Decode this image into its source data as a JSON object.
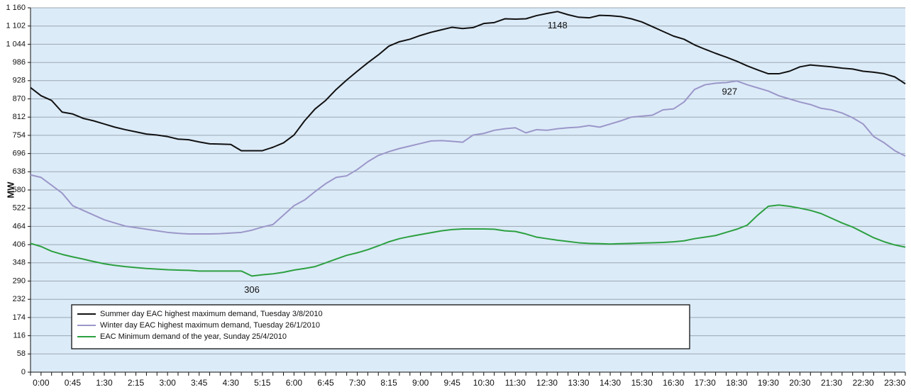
{
  "chart_data": {
    "type": "line",
    "y_label": "MW",
    "categories": [
      null,
      "0:00",
      null,
      null,
      "0:45",
      null,
      null,
      "1:30",
      null,
      null,
      "2:15",
      null,
      null,
      "3:00",
      null,
      null,
      "3:45",
      null,
      null,
      "4:30",
      null,
      null,
      "5:15",
      null,
      null,
      "6:00",
      null,
      null,
      "6:45",
      null,
      null,
      "7:30",
      null,
      null,
      "8:15",
      null,
      null,
      "9:00",
      null,
      null,
      "9:45",
      null,
      null,
      "10:30",
      null,
      null,
      "11:30",
      null,
      null,
      "12:30",
      null,
      null,
      "13:30",
      null,
      null,
      "14:30",
      null,
      null,
      "15:30",
      null,
      null,
      "16:30",
      null,
      null,
      "17:30",
      null,
      null,
      "18:30",
      null,
      null,
      "19:30",
      null,
      null,
      "20:30",
      null,
      null,
      "21:30",
      null,
      null,
      "22:30",
      null,
      null,
      "23:30",
      null
    ],
    "series": [
      {
        "name": "Summer day EAC highest maximum demand, Tuesday 3/8/2010",
        "color": "#111111",
        "values": [
          906,
          880,
          865,
          828,
          822,
          808,
          800,
          790,
          780,
          772,
          765,
          758,
          755,
          750,
          742,
          740,
          733,
          727,
          726,
          725,
          705,
          705,
          705,
          716,
          730,
          755,
          800,
          838,
          865,
          900,
          930,
          958,
          985,
          1010,
          1038,
          1052,
          1060,
          1072,
          1082,
          1090,
          1098,
          1094,
          1097,
          1110,
          1113,
          1125,
          1124,
          1125,
          1135,
          1142,
          1148,
          1138,
          1130,
          1128,
          1136,
          1135,
          1132,
          1125,
          1115,
          1100,
          1085,
          1070,
          1060,
          1042,
          1028,
          1015,
          1003,
          990,
          975,
          962,
          950,
          950,
          958,
          972,
          978,
          975,
          972,
          968,
          965,
          958,
          955,
          950,
          940,
          918
        ]
      },
      {
        "name": "Winter day EAC highest maximum demand, Tuesday 26/1/2010",
        "color": "#9b97c9",
        "values": [
          628,
          620,
          595,
          570,
          530,
          515,
          500,
          485,
          475,
          465,
          460,
          455,
          450,
          445,
          442,
          440,
          440,
          440,
          441,
          443,
          445,
          452,
          462,
          470,
          500,
          530,
          548,
          575,
          600,
          620,
          625,
          645,
          670,
          690,
          702,
          712,
          720,
          728,
          736,
          737,
          735,
          732,
          755,
          760,
          770,
          775,
          778,
          762,
          772,
          770,
          775,
          778,
          780,
          785,
          780,
          790,
          800,
          812,
          815,
          818,
          835,
          838,
          860,
          900,
          915,
          920,
          922,
          927,
          915,
          905,
          895,
          880,
          870,
          860,
          852,
          840,
          835,
          825,
          810,
          790,
          750,
          730,
          705,
          688
        ]
      },
      {
        "name": "EAC Minimum demand of the year, Sunday 25/4/2010",
        "color": "#2ca040",
        "values": [
          410,
          400,
          385,
          375,
          367,
          360,
          352,
          345,
          340,
          336,
          333,
          330,
          328,
          326,
          325,
          324,
          322,
          322,
          322,
          322,
          322,
          306,
          310,
          313,
          318,
          325,
          330,
          336,
          348,
          360,
          372,
          380,
          390,
          402,
          415,
          425,
          432,
          438,
          444,
          450,
          454,
          456,
          456,
          456,
          455,
          450,
          448,
          440,
          430,
          425,
          420,
          416,
          412,
          410,
          409,
          408,
          409,
          410,
          411,
          412,
          413,
          415,
          418,
          425,
          430,
          435,
          445,
          455,
          468,
          500,
          528,
          532,
          528,
          522,
          515,
          505,
          490,
          475,
          462,
          445,
          428,
          415,
          405,
          398
        ]
      }
    ],
    "annotations": [
      1148,
      927,
      306
    ],
    "ylim": [
      0,
      1160
    ],
    "yticks": [
      0,
      58,
      116,
      174,
      232,
      290,
      348,
      406,
      464,
      522,
      580,
      638,
      696,
      754,
      812,
      870,
      928,
      986,
      {
        "value": 1044,
        "label": "1 044"
      },
      {
        "value": 1102,
        "label": "1 102"
      },
      {
        "value": 1160,
        "label": "1 160"
      }
    ],
    "grid": true,
    "legend": "lower left",
    "background": "#dcebf8"
  }
}
